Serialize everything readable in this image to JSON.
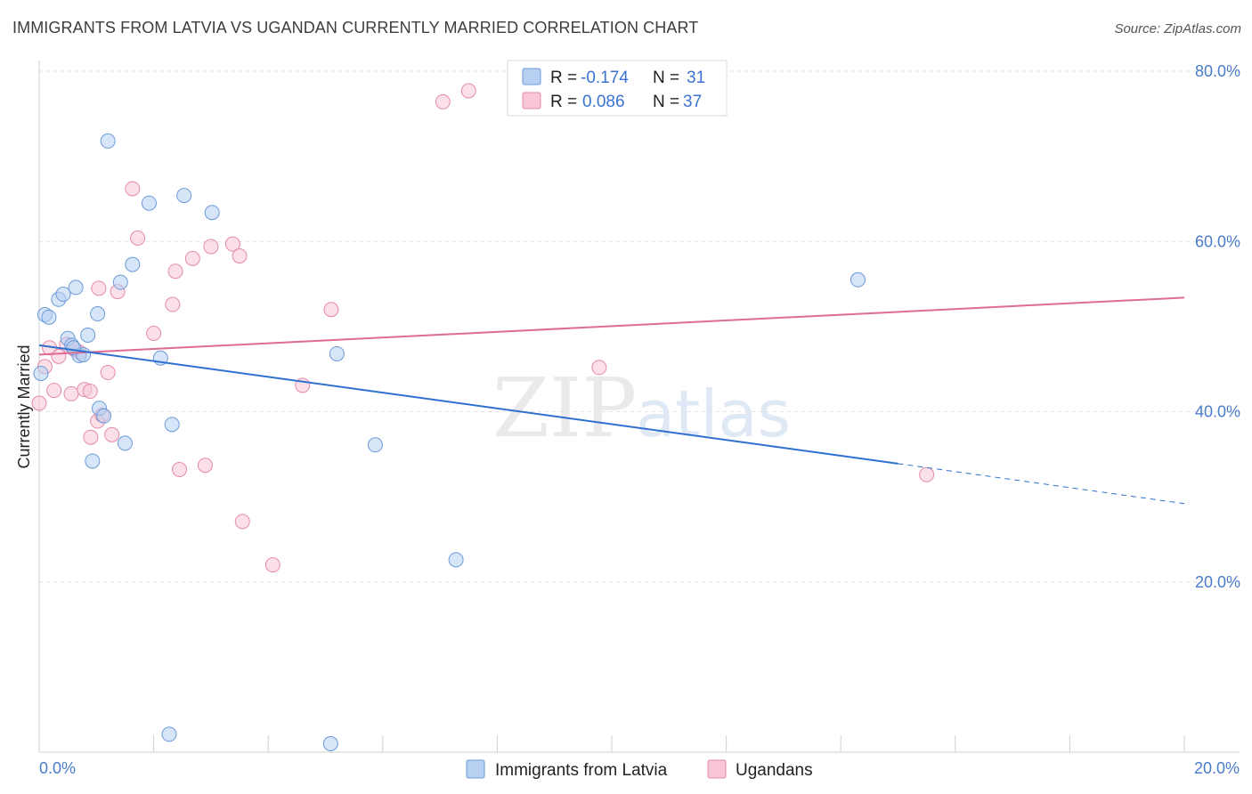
{
  "title": "IMMIGRANTS FROM LATVIA VS UGANDAN CURRENTLY MARRIED CORRELATION CHART",
  "source": "Source: ZipAtlas.com",
  "watermark": {
    "zip": "ZIP",
    "atlas": "atlas"
  },
  "colors": {
    "blue_fill": "#b7d0f2",
    "blue_stroke": "#6b9ad8",
    "blue_line": "#2f6fd0",
    "pink_fill": "#f8c6d6",
    "pink_stroke": "#e58aa8",
    "pink_line": "#e06b94",
    "axis_text": "#4a7cc9",
    "grid": "#e3e3e3"
  },
  "legend": {
    "rows": [
      {
        "r_label": "R =",
        "r_value": "-0.174",
        "n_label": "N =",
        "n_value": "31"
      },
      {
        "r_label": "R =",
        "r_value": "0.086",
        "n_label": "N =",
        "n_value": "37"
      }
    ]
  },
  "bottom_legend": [
    "Immigrants from Latvia",
    "Ugandans"
  ],
  "chart_data": {
    "type": "scatter",
    "title": "IMMIGRANTS FROM LATVIA VS UGANDAN CURRENTLY MARRIED CORRELATION CHART",
    "xlabel": "",
    "ylabel": "Currently Married",
    "xlim": [
      0,
      20
    ],
    "ylim": [
      0,
      80
    ],
    "x_tick_labels": [
      "0.0%",
      "20.0%"
    ],
    "y_ticks": [
      20,
      40,
      60,
      80
    ],
    "y_tick_labels": [
      "20.0%",
      "40.0%",
      "60.0%",
      "80.0%"
    ],
    "series": [
      {
        "name": "Immigrants from Latvia",
        "r": -0.174,
        "n": 31,
        "trend": {
          "x0": 0.0,
          "y0": 47.8,
          "x1": 15.0,
          "y1": 33.9,
          "dash_to_x": 20.0,
          "dash_to_y": 29.2
        },
        "points": [
          [
            0.03,
            44.5
          ],
          [
            0.1,
            51.4
          ],
          [
            0.17,
            51.1
          ],
          [
            0.34,
            53.2
          ],
          [
            0.42,
            53.8
          ],
          [
            0.5,
            48.6
          ],
          [
            0.57,
            47.8
          ],
          [
            0.64,
            54.6
          ],
          [
            0.7,
            46.6
          ],
          [
            0.77,
            46.7
          ],
          [
            0.85,
            49.0
          ],
          [
            0.93,
            34.2
          ],
          [
            1.02,
            51.5
          ],
          [
            1.05,
            40.4
          ],
          [
            1.13,
            39.5
          ],
          [
            1.2,
            71.8
          ],
          [
            1.5,
            36.3
          ],
          [
            1.42,
            55.2
          ],
          [
            1.63,
            57.3
          ],
          [
            1.92,
            64.5
          ],
          [
            2.12,
            46.3
          ],
          [
            2.32,
            38.5
          ],
          [
            2.53,
            65.4
          ],
          [
            2.27,
            2.1
          ],
          [
            3.02,
            63.4
          ],
          [
            5.09,
            1.0
          ],
          [
            5.2,
            46.8
          ],
          [
            5.87,
            36.1
          ],
          [
            7.28,
            22.6
          ],
          [
            14.3,
            55.5
          ],
          [
            0.6,
            47.5
          ]
        ]
      },
      {
        "name": "Ugandans",
        "r": 0.086,
        "n": 37,
        "trend": {
          "x0": 0.0,
          "y0": 46.7,
          "x1": 20.0,
          "y1": 53.4
        },
        "points": [
          [
            0.0,
            41.0
          ],
          [
            0.1,
            45.3
          ],
          [
            0.18,
            47.5
          ],
          [
            0.26,
            42.5
          ],
          [
            0.34,
            46.5
          ],
          [
            0.48,
            47.9
          ],
          [
            0.56,
            42.1
          ],
          [
            0.62,
            47.3
          ],
          [
            0.7,
            47.0
          ],
          [
            0.79,
            42.6
          ],
          [
            0.89,
            42.4
          ],
          [
            0.9,
            37.0
          ],
          [
            1.02,
            38.9
          ],
          [
            1.04,
            54.5
          ],
          [
            1.1,
            39.6
          ],
          [
            1.2,
            44.6
          ],
          [
            1.27,
            37.3
          ],
          [
            1.37,
            54.1
          ],
          [
            1.63,
            66.2
          ],
          [
            1.72,
            60.4
          ],
          [
            2.0,
            49.2
          ],
          [
            2.33,
            52.6
          ],
          [
            2.38,
            56.5
          ],
          [
            2.45,
            33.2
          ],
          [
            2.68,
            58.0
          ],
          [
            2.9,
            33.7
          ],
          [
            3.0,
            59.4
          ],
          [
            3.38,
            59.7
          ],
          [
            3.5,
            58.3
          ],
          [
            3.55,
            27.1
          ],
          [
            4.08,
            22.0
          ],
          [
            4.6,
            43.1
          ],
          [
            5.1,
            52.0
          ],
          [
            7.05,
            76.4
          ],
          [
            7.5,
            77.7
          ],
          [
            9.78,
            45.2
          ],
          [
            15.5,
            32.6
          ]
        ]
      }
    ]
  }
}
